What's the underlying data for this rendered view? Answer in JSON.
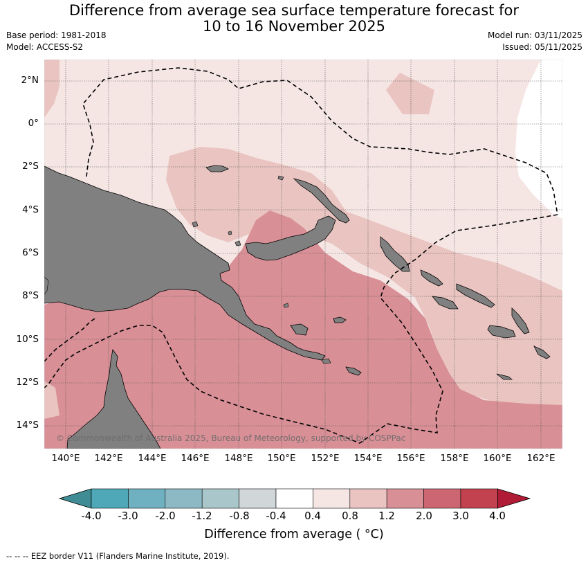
{
  "title_line1": "Difference from average sea surface temperature forecast for",
  "title_line2": "10 to 16 November 2025",
  "base_period": "Base period: 1981-2018",
  "model": "Model: ACCESS-S2",
  "model_run": "Model run: 03/11/2025",
  "issued": "Issued: 05/11/2025",
  "lat_labels": [
    "2°N",
    "0°",
    "2°S",
    "4°S",
    "6°S",
    "8°S",
    "10°S",
    "12°S",
    "14°S"
  ],
  "lon_labels": [
    "140°E",
    "142°E",
    "144°E",
    "146°E",
    "148°E",
    "150°E",
    "152°E",
    "154°E",
    "156°E",
    "158°E",
    "160°E",
    "162°E"
  ],
  "watermark": "© Commonwealth of Australia 2025, Bureau of Meteorology, supported by COSPPac",
  "colorbar": {
    "ticks": [
      "-4.0",
      "-3.0",
      "-2.0",
      "-1.2",
      "-0.8",
      "-0.4",
      "0.4",
      "0.8",
      "1.2",
      "2.0",
      "3.0",
      "4.0"
    ],
    "colors": [
      "#3f8c95",
      "#4ea8b7",
      "#6fb1c0",
      "#8cb9c4",
      "#a9c7cb",
      "#d1d7d9",
      "#ffffff",
      "#f5e6e4",
      "#e9c4c1",
      "#d88f96",
      "#cc6672",
      "#c2424f",
      "#b01c35"
    ],
    "label": "Difference from average ( °C)"
  },
  "footer": "-- -- -- EEZ border V11 (Flanders Marine Institute, 2019).",
  "colors": {
    "land": "#808080",
    "anom_0_4_0_8": "#f5e6e4",
    "anom_0_8_1_2": "#e9c4c1",
    "anom_1_2_2_0": "#d88f96",
    "neutral": "#ffffff"
  }
}
